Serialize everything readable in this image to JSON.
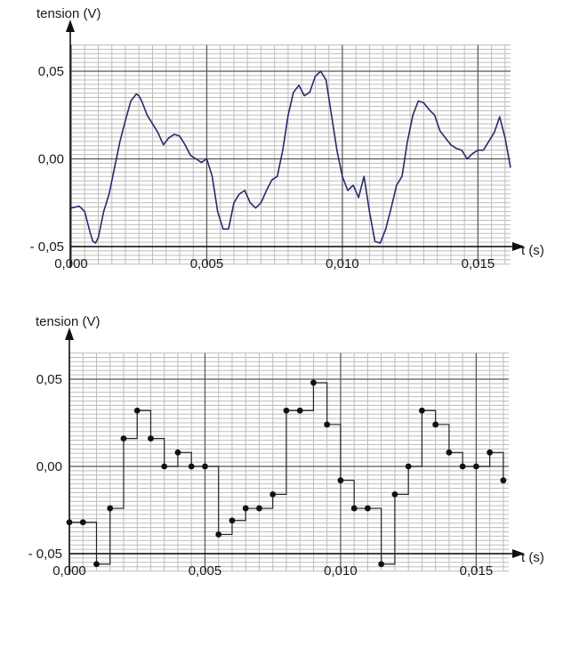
{
  "chart_data": [
    {
      "type": "line",
      "ylabel": "tension (V)",
      "xlabel": "t (s)",
      "xlim": [
        0,
        0.0162
      ],
      "ylim": [
        -0.06,
        0.065
      ],
      "x_ticks": [
        "0,000",
        "0,005",
        "0,010",
        "0,015"
      ],
      "x_tick_values": [
        0,
        0.005,
        0.01,
        0.015
      ],
      "y_ticks": [
        "0,05",
        "0,00",
        "- 0,05"
      ],
      "y_tick_values": [
        0.05,
        0,
        -0.05
      ],
      "grid": true,
      "line_color": "#2a2a6a",
      "series": [
        {
          "x": [
            0,
            0.0003,
            0.0005,
            0.0007,
            0.0008,
            0.0009,
            0.001,
            0.0012,
            0.0014,
            0.0016,
            0.0018,
            0.002,
            0.0022,
            0.0024,
            0.0025,
            0.0026,
            0.0028,
            0.003,
            0.0032,
            0.0034,
            0.0036,
            0.0038,
            0.004,
            0.0042,
            0.0044,
            0.0046,
            0.0048,
            0.005,
            0.0052,
            0.0054,
            0.0056,
            0.0058,
            0.006,
            0.0062,
            0.0064,
            0.0066,
            0.0068,
            0.007,
            0.0072,
            0.0074,
            0.0076,
            0.0078,
            0.008,
            0.0082,
            0.0084,
            0.0086,
            0.0088,
            0.009,
            0.0092,
            0.0094,
            0.0096,
            0.0098,
            0.01,
            0.0102,
            0.0104,
            0.0106,
            0.0108,
            0.011,
            0.0112,
            0.0114,
            0.0116,
            0.0118,
            0.012,
            0.0122,
            0.0124,
            0.0126,
            0.0128,
            0.013,
            0.0132,
            0.0134,
            0.0136,
            0.0138,
            0.014,
            0.0142,
            0.0144,
            0.0146,
            0.0148,
            0.015,
            0.0152,
            0.0154,
            0.0156,
            0.0158,
            0.016,
            0.0162
          ],
          "y": [
            -0.028,
            -0.027,
            -0.03,
            -0.042,
            -0.047,
            -0.048,
            -0.045,
            -0.03,
            -0.02,
            -0.005,
            0.01,
            0.022,
            0.033,
            0.037,
            0.036,
            0.033,
            0.025,
            0.02,
            0.015,
            0.008,
            0.012,
            0.014,
            0.013,
            0.008,
            0.002,
            0.0,
            -0.002,
            0.0,
            -0.01,
            -0.03,
            -0.04,
            -0.04,
            -0.025,
            -0.02,
            -0.018,
            -0.025,
            -0.028,
            -0.025,
            -0.018,
            -0.012,
            -0.01,
            0.005,
            0.025,
            0.038,
            0.042,
            0.036,
            0.038,
            0.047,
            0.05,
            0.045,
            0.025,
            0.005,
            -0.01,
            -0.018,
            -0.015,
            -0.022,
            -0.01,
            -0.03,
            -0.047,
            -0.048,
            -0.04,
            -0.028,
            -0.015,
            -0.01,
            0.01,
            0.025,
            0.033,
            0.032,
            0.028,
            0.025,
            0.016,
            0.012,
            0.008,
            0.006,
            0.005,
            0.0,
            0.003,
            0.005,
            0.005,
            0.01,
            0.015,
            0.024,
            0.012,
            -0.005
          ]
        }
      ]
    },
    {
      "type": "scatter",
      "ylabel": "tension (V)",
      "xlabel": "t (s)",
      "xlim": [
        0,
        0.0162
      ],
      "ylim": [
        -0.06,
        0.065
      ],
      "x_ticks": [
        "0,000",
        "0,005",
        "0,010",
        "0,015"
      ],
      "x_tick_values": [
        0,
        0.005,
        0.01,
        0.015
      ],
      "y_ticks": [
        "0,05",
        "0,00",
        "- 0,05"
      ],
      "y_tick_values": [
        0.05,
        0,
        -0.05
      ],
      "grid": true,
      "step_style": "sample-and-hold",
      "series": [
        {
          "x": [
            0.0,
            0.0005,
            0.001,
            0.0015,
            0.002,
            0.0025,
            0.003,
            0.0035,
            0.004,
            0.0045,
            0.005,
            0.0055,
            0.006,
            0.0065,
            0.007,
            0.0075,
            0.008,
            0.0085,
            0.009,
            0.0095,
            0.01,
            0.0105,
            0.011,
            0.0115,
            0.012,
            0.0125,
            0.013,
            0.0135,
            0.014,
            0.0145,
            0.015,
            0.0155,
            0.016
          ],
          "y": [
            -0.032,
            -0.032,
            -0.056,
            -0.024,
            0.016,
            0.032,
            0.016,
            0.0,
            0.008,
            0.0,
            0.0,
            -0.039,
            -0.031,
            -0.024,
            -0.024,
            -0.016,
            0.032,
            0.032,
            0.048,
            0.024,
            -0.008,
            -0.024,
            -0.024,
            -0.056,
            -0.016,
            0.0,
            0.032,
            0.024,
            0.008,
            0.0,
            0.0,
            0.008,
            -0.008
          ]
        }
      ]
    }
  ]
}
